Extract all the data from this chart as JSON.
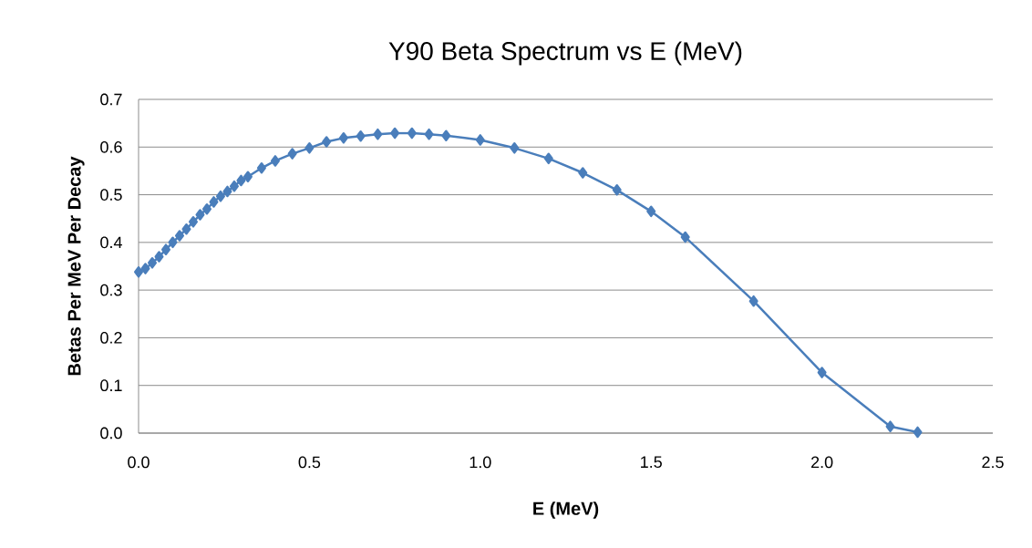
{
  "chart_data": {
    "type": "line",
    "title": "Y90 Beta Spectrum   vs  E (MeV)",
    "xlabel": "E (MeV)",
    "ylabel": "Betas Per MeV Per Decay",
    "x": [
      0.0,
      0.02,
      0.04,
      0.06,
      0.08,
      0.1,
      0.12,
      0.14,
      0.16,
      0.18,
      0.2,
      0.22,
      0.24,
      0.26,
      0.28,
      0.3,
      0.32,
      0.36,
      0.4,
      0.45,
      0.5,
      0.55,
      0.6,
      0.65,
      0.7,
      0.75,
      0.8,
      0.85,
      0.9,
      1.0,
      1.1,
      1.2,
      1.3,
      1.4,
      1.5,
      1.6,
      1.8,
      2.0,
      2.2,
      2.28
    ],
    "series": [
      {
        "color": "#4a7ebb",
        "values": [
          0.338,
          0.345,
          0.357,
          0.37,
          0.385,
          0.4,
          0.414,
          0.428,
          0.443,
          0.458,
          0.47,
          0.485,
          0.497,
          0.507,
          0.518,
          0.53,
          0.538,
          0.556,
          0.571,
          0.586,
          0.598,
          0.611,
          0.619,
          0.623,
          0.627,
          0.629,
          0.629,
          0.627,
          0.624,
          0.615,
          0.598,
          0.576,
          0.546,
          0.51,
          0.465,
          0.411,
          0.277,
          0.127,
          0.014,
          0.002
        ]
      }
    ],
    "xlim": [
      0,
      2.5
    ],
    "ylim": [
      0,
      0.7
    ],
    "xticks": [
      {
        "value": 0,
        "label": "0.0"
      },
      {
        "value": 0.5,
        "label": "0.5"
      },
      {
        "value": 1,
        "label": "1.0"
      },
      {
        "value": 1.5,
        "label": "1.5"
      },
      {
        "value": 2,
        "label": "2.0"
      },
      {
        "value": 2.5,
        "label": "2.5"
      }
    ],
    "yticks": [
      {
        "value": 0,
        "label": "0.0"
      },
      {
        "value": 0.1,
        "label": "0.1"
      },
      {
        "value": 0.2,
        "label": "0.2"
      },
      {
        "value": 0.3,
        "label": "0.3"
      },
      {
        "value": 0.4,
        "label": "0.4"
      },
      {
        "value": 0.5,
        "label": "0.5"
      },
      {
        "value": 0.6,
        "label": "0.6"
      },
      {
        "value": 0.7,
        "label": "0.7"
      }
    ],
    "grid": "y",
    "marker": "diamond",
    "line_style": "solid"
  }
}
